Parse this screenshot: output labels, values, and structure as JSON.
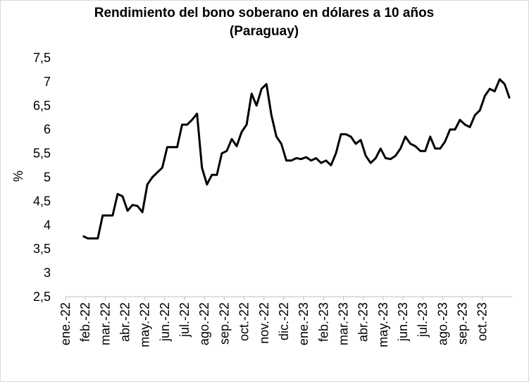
{
  "chart_data": {
    "type": "line",
    "title": "Rendimiento del bono soberano en dólares a 10 años",
    "subtitle": "(Paraguay)",
    "y_label": "%",
    "categories": [
      "ene.-22",
      null,
      null,
      null,
      "feb.-22",
      null,
      null,
      null,
      "mar.-22",
      null,
      null,
      null,
      "abr.-22",
      null,
      null,
      null,
      "may.-22",
      null,
      null,
      null,
      "jun.-22",
      null,
      null,
      null,
      "jul.-22",
      null,
      null,
      null,
      "ago.-22",
      null,
      null,
      null,
      "sep.-22",
      null,
      null,
      null,
      "oct.-22",
      null,
      null,
      null,
      "nov.-22",
      null,
      null,
      null,
      "dic.-22",
      null,
      null,
      null,
      "ene.-23",
      null,
      null,
      null,
      "feb.-23",
      null,
      null,
      null,
      "mar.-23",
      null,
      null,
      null,
      "abr.-23",
      null,
      null,
      null,
      "may.-23",
      null,
      null,
      null,
      "jun.-23",
      null,
      null,
      null,
      "jul.-23",
      null,
      null,
      null,
      "ago.-23",
      null,
      null,
      null,
      "sep.-23",
      null,
      null,
      null,
      "oct.-23",
      null,
      null,
      null,
      null,
      null
    ],
    "series": [
      {
        "color": "#000000",
        "values": [
          null,
          null,
          null,
          3.77,
          3.72,
          3.72,
          3.72,
          4.2,
          4.2,
          4.2,
          4.65,
          4.6,
          4.3,
          4.42,
          4.4,
          4.27,
          4.85,
          5.0,
          5.1,
          5.2,
          5.63,
          5.63,
          5.63,
          6.1,
          6.1,
          6.2,
          6.33,
          5.2,
          4.85,
          5.05,
          5.05,
          5.5,
          5.55,
          5.8,
          5.65,
          5.95,
          6.1,
          6.75,
          6.5,
          6.85,
          6.95,
          6.3,
          5.85,
          5.7,
          5.35,
          5.35,
          5.4,
          5.38,
          5.42,
          5.35,
          5.4,
          5.3,
          5.35,
          5.25,
          5.5,
          5.9,
          5.9,
          5.85,
          5.7,
          5.78,
          5.45,
          5.3,
          5.4,
          5.6,
          5.4,
          5.38,
          5.45,
          5.6,
          5.85,
          5.7,
          5.65,
          5.55,
          5.55,
          5.85,
          5.6,
          5.6,
          5.75,
          6.0,
          6.0,
          6.2,
          6.1,
          6.05,
          6.3,
          6.4,
          6.7,
          6.85,
          6.8,
          7.05,
          6.95,
          6.65
        ]
      }
    ],
    "ylim": [
      2.5,
      7.5
    ],
    "yticks": [
      {
        "value": 2.5,
        "label": "2,5"
      },
      3,
      {
        "value": 3.5,
        "label": "3,5"
      },
      4,
      {
        "value": 4.5,
        "label": "4,5"
      },
      5,
      {
        "value": 5.5,
        "label": "5,5"
      },
      6,
      {
        "value": 6.5,
        "label": "6,5"
      },
      7,
      {
        "value": 7.5,
        "label": "7,5"
      }
    ],
    "grid": false
  }
}
